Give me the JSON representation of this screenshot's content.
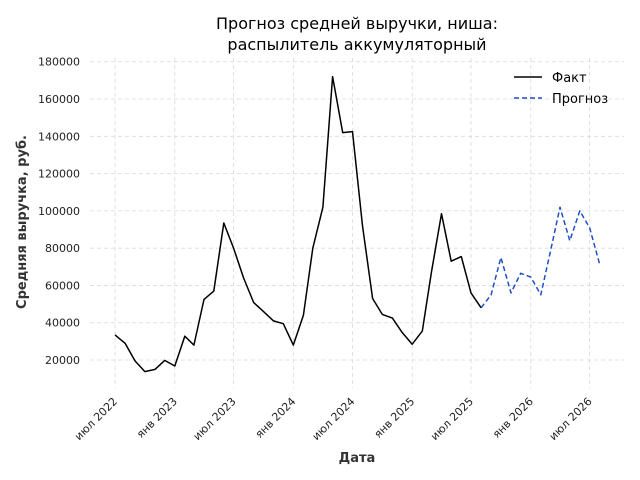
{
  "chart_data": {
    "type": "line",
    "title_lines": [
      "Прогноз средней выручки, ниша:",
      "распылитель аккумуляторный"
    ],
    "xlabel": "Дата",
    "ylabel": "Средняя выручка, руб.",
    "x_ticks": [
      {
        "label": "июл 2022",
        "date": "2022-07-01"
      },
      {
        "label": "янв 2023",
        "date": "2023-01-01"
      },
      {
        "label": "июл 2023",
        "date": "2023-07-01"
      },
      {
        "label": "янв 2024",
        "date": "2024-01-01"
      },
      {
        "label": "июл 2024",
        "date": "2024-07-01"
      },
      {
        "label": "янв 2025",
        "date": "2025-01-01"
      },
      {
        "label": "июл 2025",
        "date": "2025-07-01"
      },
      {
        "label": "янв 2026",
        "date": "2026-01-01"
      },
      {
        "label": "июл 2026",
        "date": "2026-07-01"
      }
    ],
    "y_ticks": [
      "20000",
      "40000",
      "60000",
      "80000",
      "100000",
      "120000",
      "140000",
      "160000",
      "180000"
    ],
    "xlim": [
      "2022-04-15",
      "2026-10-15"
    ],
    "ylim": [
      5000,
      182000
    ],
    "grid": true,
    "legend_position": "top-right",
    "series": [
      {
        "name": "Факт",
        "color": "#000000",
        "style": "solid",
        "points": [
          [
            "2022-07-01",
            33500
          ],
          [
            "2022-08-01",
            29000
          ],
          [
            "2022-09-01",
            19500
          ],
          [
            "2022-10-01",
            13800
          ],
          [
            "2022-11-01",
            15000
          ],
          [
            "2022-12-01",
            19800
          ],
          [
            "2023-01-01",
            16800
          ],
          [
            "2023-02-01",
            32800
          ],
          [
            "2023-03-01",
            28000
          ],
          [
            "2023-04-01",
            52500
          ],
          [
            "2023-05-01",
            57000
          ],
          [
            "2023-06-01",
            93500
          ],
          [
            "2023-07-01",
            80000
          ],
          [
            "2023-08-01",
            64000
          ],
          [
            "2023-09-01",
            50800
          ],
          [
            "2023-10-01",
            46000
          ],
          [
            "2023-11-01",
            41000
          ],
          [
            "2023-12-01",
            39500
          ],
          [
            "2024-01-01",
            28000
          ],
          [
            "2024-02-01",
            44000
          ],
          [
            "2024-03-01",
            80000
          ],
          [
            "2024-04-01",
            102000
          ],
          [
            "2024-05-01",
            172000
          ],
          [
            "2024-06-01",
            142000
          ],
          [
            "2024-07-01",
            142500
          ],
          [
            "2024-08-01",
            92000
          ],
          [
            "2024-09-01",
            53000
          ],
          [
            "2024-10-01",
            44500
          ],
          [
            "2024-11-01",
            42500
          ],
          [
            "2024-12-01",
            34800
          ],
          [
            "2025-01-01",
            28500
          ],
          [
            "2025-02-01",
            35500
          ],
          [
            "2025-03-01",
            67000
          ],
          [
            "2025-04-01",
            98500
          ],
          [
            "2025-05-01",
            73000
          ],
          [
            "2025-06-01",
            75500
          ],
          [
            "2025-07-01",
            56000
          ],
          [
            "2025-08-01",
            48000
          ]
        ]
      },
      {
        "name": "Прогноз",
        "color": "#1f4fc4",
        "style": "dashed",
        "points": [
          [
            "2025-08-01",
            48000
          ],
          [
            "2025-09-01",
            55000
          ],
          [
            "2025-10-01",
            75000
          ],
          [
            "2025-11-01",
            56000
          ],
          [
            "2025-12-01",
            66500
          ],
          [
            "2026-01-01",
            64500
          ],
          [
            "2026-02-01",
            55000
          ],
          [
            "2026-03-01",
            77000
          ],
          [
            "2026-04-01",
            102000
          ],
          [
            "2026-05-01",
            84000
          ],
          [
            "2026-06-01",
            100000
          ],
          [
            "2026-07-01",
            91000
          ],
          [
            "2026-08-01",
            71500
          ]
        ]
      }
    ]
  }
}
